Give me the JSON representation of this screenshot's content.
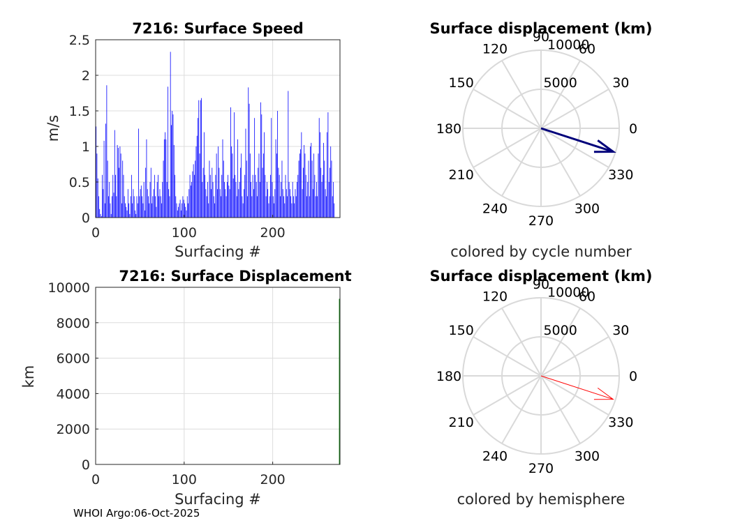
{
  "chart_data": [
    {
      "id": "speed",
      "type": "bar",
      "title": "7216: Surface Speed",
      "xlabel": "Surfacing #",
      "ylabel": "m/s",
      "xlim": [
        0,
        276
      ],
      "ylim": [
        0,
        2.5
      ],
      "xticks": [
        0,
        100,
        200
      ],
      "xtick_labels": [
        "0",
        "100",
        "200"
      ],
      "yticks": [
        0,
        0.5,
        1,
        1.5,
        2,
        2.5
      ],
      "ytick_labels": [
        "0",
        "0.5",
        "1",
        "1.5",
        "2",
        "2.5"
      ],
      "grid": true,
      "color": "#0000ff",
      "values": [
        1.28,
        0.9,
        0.55,
        0.3,
        0.12,
        0.05,
        0.02,
        0.6,
        0.4,
        1.08,
        0.2,
        1.32,
        1.86,
        0.8,
        0.3,
        0.5,
        0.2,
        0.05,
        0.3,
        0.6,
        0.35,
        1.23,
        0.6,
        0.3,
        1.02,
        0.98,
        0.7,
        1.0,
        0.9,
        0.2,
        0.8,
        0.6,
        0.3,
        0.2,
        0.15,
        0.1,
        0.4,
        0.2,
        0.05,
        0.3,
        0.6,
        0.2,
        0.4,
        0.3,
        0.1,
        0.05,
        0.3,
        0.2,
        1.25,
        0.3,
        0.4,
        0.45,
        0.3,
        0.2,
        0.5,
        0.1,
        0.7,
        1.1,
        0.4,
        0.3,
        0.2,
        0.5,
        0.7,
        0.2,
        0.3,
        0.4,
        0.6,
        0.3,
        0.15,
        0.5,
        0.6,
        0.3,
        0.4,
        0.3,
        0.2,
        0.5,
        0.8,
        1.1,
        1.2,
        1.1,
        0.5,
        1.84,
        0.4,
        0.3,
        2.33,
        1.3,
        1.5,
        1.45,
        1.02,
        0.6,
        0.3,
        0.2,
        0.1,
        0.15,
        0.2,
        0.25,
        0.1,
        0.2,
        0.3,
        0.25,
        0.2,
        0.15,
        0.1,
        0.3,
        0.2,
        0.4,
        0.6,
        0.45,
        0.5,
        0.65,
        0.75,
        0.6,
        0.8,
        1.0,
        1.15,
        1.4,
        1.65,
        0.9,
        1.65,
        1.68,
        0.5,
        0.7,
        1.2,
        0.6,
        0.4,
        0.3,
        0.5,
        0.2,
        0.8,
        0.6,
        0.4,
        0.7,
        0.5,
        0.3,
        0.2,
        0.6,
        0.9,
        0.4,
        1.0,
        0.7,
        0.4,
        0.3,
        0.6,
        1.1,
        0.8,
        0.5,
        0.4,
        0.3,
        0.5,
        0.6,
        0.45,
        0.4,
        1.55,
        1.0,
        0.9,
        0.55,
        1.48,
        0.6,
        0.5,
        0.3,
        1.1,
        0.4,
        0.5,
        0.7,
        0.9,
        0.3,
        0.2,
        0.4,
        0.6,
        1.25,
        0.8,
        0.3,
        1.83,
        1.6,
        0.9,
        0.5,
        0.3,
        0.6,
        0.4,
        1.4,
        0.6,
        0.5,
        0.3,
        0.7,
        0.9,
        0.5,
        1.62,
        1.45,
        0.7,
        0.9,
        1.2,
        0.6,
        0.3,
        0.5,
        0.4,
        0.2,
        0.3,
        0.6,
        1.4,
        0.5,
        0.3,
        0.2,
        0.4,
        1.1,
        0.9,
        1.5,
        0.7,
        0.6,
        0.3,
        0.5,
        0.8,
        0.4,
        0.3,
        0.2,
        0.6,
        0.4,
        0.3,
        1.78,
        0.5,
        0.4,
        0.3,
        0.2,
        0.5,
        0.3,
        0.2,
        0.4,
        0.3,
        0.5,
        0.6,
        0.8,
        0.9,
        0.96,
        1.2,
        0.4,
        0.7,
        1.02,
        0.9,
        0.6,
        0.3,
        0.5,
        0.8,
        0.3,
        1.0,
        1.05,
        0.8,
        0.4,
        0.9,
        0.6,
        0.3,
        0.5,
        0.3,
        0.9,
        1.4,
        1.2,
        0.7,
        0.5,
        0.6,
        1.05,
        0.8,
        0.4,
        0.3,
        1.2,
        1.48,
        0.5,
        0.7,
        1.0,
        0.8,
        0.3,
        0.5,
        0.2
      ]
    },
    {
      "id": "displacement",
      "type": "line",
      "title": "7216: Surface Displacement",
      "xlabel": "Surfacing #",
      "ylabel": "km",
      "xlim": [
        0,
        276
      ],
      "ylim": [
        0,
        10000
      ],
      "xticks": [
        0,
        100,
        200
      ],
      "xtick_labels": [
        "0",
        "100",
        "200"
      ],
      "yticks": [
        0,
        2000,
        4000,
        6000,
        8000,
        10000
      ],
      "ytick_labels": [
        "0",
        "2000",
        "4000",
        "6000",
        "8000",
        "10000"
      ],
      "grid": true,
      "color": "#008000",
      "x": [
        275.5,
        275.5
      ],
      "y": [
        0,
        9350
      ]
    },
    {
      "id": "polar1",
      "type": "polar",
      "title": "Surface displacement (km)",
      "caption": "colored by cycle number",
      "rmax": 10000,
      "rticks": [
        5000,
        10000
      ],
      "rtick_labels": [
        "5000",
        "10000"
      ],
      "theta_labels": [
        "0",
        "30",
        "60",
        "90",
        "120",
        "150",
        "180",
        "210",
        "240",
        "270",
        "300",
        "330"
      ],
      "vector": {
        "angle_deg": -18,
        "magnitude_km": 9700
      },
      "color": "#00007a"
    },
    {
      "id": "polar2",
      "type": "polar",
      "title": "Surface displacement (km)",
      "caption": "colored by hemisphere",
      "rmax": 10000,
      "rticks": [
        5000,
        10000
      ],
      "rtick_labels": [
        "5000",
        "10000"
      ],
      "theta_labels": [
        "0",
        "30",
        "60",
        "90",
        "120",
        "150",
        "180",
        "210",
        "240",
        "270",
        "300",
        "330"
      ],
      "vector": {
        "angle_deg": -18,
        "magnitude_km": 9700
      },
      "color": "#ff0000"
    }
  ],
  "footer": "WHOI Argo:06-Oct-2025"
}
